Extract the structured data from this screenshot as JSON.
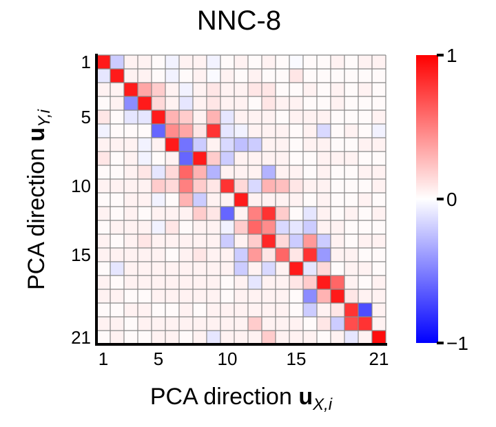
{
  "chart_data": {
    "type": "heatmap",
    "title": "NNC-8",
    "xlabel": {
      "text": "PCA direction ",
      "bold": "u",
      "sub": "X,i"
    },
    "ylabel": {
      "text": "PCA direction ",
      "bold": "u",
      "sub": "Y,i"
    },
    "rows": 21,
    "cols": 21,
    "x_ticks": [
      1,
      5,
      10,
      15,
      21
    ],
    "y_ticks": [
      1,
      5,
      10,
      15,
      21
    ],
    "colorbar": {
      "min": -1,
      "max": 1,
      "ticks": [
        -1,
        0,
        1
      ],
      "tick_labels": [
        "−1",
        "0",
        "1"
      ],
      "colors": [
        "#0000ff",
        "#ffffff",
        "#ff0000"
      ]
    },
    "grid": true,
    "values": [
      [
        0.9,
        -0.2,
        0.05,
        0.05,
        0.02,
        -0.05,
        0.05,
        0.05,
        -0.05,
        0.02,
        0.05,
        0.02,
        0.05,
        0.02,
        -0.02,
        0.02,
        0.02,
        0.05,
        0.02,
        0.05,
        0.05
      ],
      [
        -0.1,
        0.9,
        0.05,
        0.05,
        0.02,
        -0.05,
        0.02,
        0.05,
        -0.02,
        0.05,
        0.02,
        0.05,
        0.02,
        0.02,
        0.1,
        0.02,
        0.02,
        0.02,
        0.02,
        0.02,
        0.02
      ],
      [
        0.05,
        0.05,
        0.9,
        0.35,
        0.2,
        0.05,
        -0.05,
        0.05,
        0.1,
        0.05,
        0.05,
        0.1,
        0.1,
        0.02,
        0.02,
        0.05,
        0.02,
        0.05,
        0.02,
        0.05,
        0.02
      ],
      [
        0.02,
        0.05,
        -0.45,
        0.9,
        0.15,
        0.05,
        -0.1,
        0.05,
        0.1,
        0.05,
        0.05,
        0.02,
        0.1,
        0.05,
        0.05,
        0.02,
        0.02,
        0.05,
        0.02,
        0.02,
        0.02
      ],
      [
        0.1,
        0.02,
        -0.1,
        -0.1,
        0.9,
        0.3,
        0.2,
        0.05,
        0.3,
        -0.1,
        0.05,
        0.05,
        0.05,
        0.02,
        0.05,
        0.05,
        0.05,
        0.02,
        0.02,
        0.02,
        0.05
      ],
      [
        -0.05,
        0.02,
        0.02,
        0.02,
        -0.6,
        0.45,
        0.35,
        0.1,
        0.8,
        -0.1,
        -0.05,
        0.05,
        0.05,
        0.05,
        0.02,
        0.05,
        -0.15,
        0.02,
        0.05,
        0.02,
        -0.05
      ],
      [
        0.05,
        0.05,
        0.05,
        -0.05,
        0.05,
        0.9,
        -0.55,
        -0.2,
        0.05,
        -0.15,
        -0.25,
        -0.2,
        0.05,
        0.05,
        0.02,
        0.05,
        0.05,
        0.02,
        0.02,
        0.05,
        0.05
      ],
      [
        0.1,
        0.02,
        0.05,
        -0.05,
        0.02,
        0.05,
        -0.6,
        0.9,
        0.2,
        -0.2,
        0.05,
        0.05,
        0.05,
        0.05,
        0.02,
        0.02,
        0.05,
        0.05,
        0.05,
        0.02,
        0.02
      ],
      [
        0.02,
        0.02,
        0.05,
        0.1,
        -0.1,
        0.15,
        0.6,
        0.3,
        -0.3,
        0.05,
        0.05,
        0.05,
        -0.3,
        0.05,
        0.05,
        0.02,
        0.05,
        0.02,
        0.02,
        0.05,
        0.05
      ],
      [
        0.05,
        0.05,
        0.05,
        0.05,
        0.2,
        0.15,
        0.5,
        0.2,
        0.1,
        0.8,
        0.15,
        -0.15,
        0.3,
        0.25,
        0.1,
        0.05,
        0.05,
        0.02,
        0.02,
        0.02,
        0.05
      ],
      [
        0.02,
        0.02,
        0.05,
        0.05,
        -0.05,
        0.02,
        0.3,
        -0.2,
        0.05,
        0.05,
        0.9,
        0.05,
        0.05,
        0.05,
        0.05,
        0.02,
        0.05,
        0.02,
        0.02,
        0.05,
        0.02
      ],
      [
        0.05,
        0.02,
        0.05,
        0.02,
        0.05,
        0.05,
        0.05,
        0.2,
        0.1,
        -0.6,
        0.05,
        0.5,
        0.8,
        0.2,
        0.02,
        -0.1,
        0.05,
        0.02,
        0.05,
        0.02,
        0.05
      ],
      [
        0.02,
        0.05,
        0.05,
        0.05,
        -0.05,
        0.1,
        0.02,
        0.05,
        0.05,
        -0.05,
        0.2,
        0.6,
        0.45,
        -0.15,
        -0.1,
        -0.2,
        0.05,
        0.05,
        0.02,
        0.02,
        0.02
      ],
      [
        0.05,
        0.02,
        0.05,
        0.1,
        0.05,
        0.05,
        0.05,
        0.05,
        0.05,
        -0.2,
        0.05,
        0.2,
        0.85,
        0.15,
        -0.2,
        0.4,
        -0.2,
        0.05,
        0.02,
        0.05,
        0.05
      ],
      [
        0.05,
        0.05,
        0.05,
        0.05,
        0.05,
        0.02,
        0.05,
        0.1,
        0.05,
        0.05,
        -0.2,
        0.4,
        0.1,
        0.6,
        0.1,
        0.8,
        -0.4,
        0.05,
        0.05,
        0.02,
        0.02
      ],
      [
        0.02,
        -0.1,
        0.05,
        0.05,
        0.05,
        0.05,
        0.05,
        0.05,
        0.05,
        0.05,
        -0.2,
        0.05,
        -0.15,
        0.05,
        0.9,
        -0.1,
        0.15,
        0.02,
        0.05,
        0.05,
        0.02
      ],
      [
        0.05,
        0.02,
        0.05,
        0.05,
        0.05,
        0.05,
        0.05,
        0.05,
        0.05,
        0.02,
        0.05,
        -0.1,
        0.05,
        0.05,
        0.1,
        0.2,
        0.9,
        0.6,
        0.05,
        0.02,
        0.05
      ],
      [
        0.05,
        0.05,
        0.02,
        0.02,
        0.05,
        0.05,
        0.05,
        0.05,
        0.05,
        0.02,
        0.05,
        0.05,
        0.05,
        0.05,
        0.02,
        -0.45,
        0.3,
        0.9,
        0.1,
        0.05,
        0.05
      ],
      [
        0.02,
        0.02,
        0.05,
        0.05,
        0.02,
        0.02,
        0.05,
        0.02,
        0.05,
        0.05,
        0.05,
        0.05,
        0.05,
        0.05,
        0.02,
        -0.2,
        0.05,
        0.1,
        0.8,
        -0.7,
        0.05
      ],
      [
        0.05,
        0.05,
        0.02,
        0.05,
        0.05,
        0.05,
        0.05,
        0.05,
        0.05,
        0.05,
        0.05,
        0.2,
        0.05,
        0.05,
        0.05,
        0.02,
        0.1,
        -0.2,
        0.7,
        0.8,
        0.05
      ],
      [
        0.02,
        0.05,
        0.02,
        0.02,
        0.05,
        0.05,
        0.02,
        0.05,
        -0.1,
        0.05,
        0.05,
        0.05,
        0.2,
        0.05,
        0.05,
        0.05,
        0.02,
        0.05,
        -0.1,
        0.05,
        0.95
      ]
    ]
  }
}
